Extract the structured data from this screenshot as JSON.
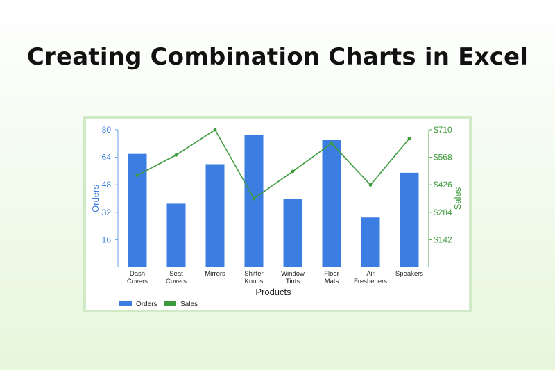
{
  "page": {
    "title": "Creating Combination Charts in Excel"
  },
  "chart_data": {
    "type": "bar",
    "combo": "bar + line (secondary axis)",
    "categories": [
      [
        "Dash",
        "Covers"
      ],
      [
        "Seat",
        "Covers"
      ],
      [
        "Mirrors"
      ],
      [
        "Shifter",
        "Knobs"
      ],
      [
        "Window",
        "Tints"
      ],
      [
        "Floor",
        "Mats"
      ],
      [
        "Air",
        "Fresheners"
      ],
      [
        "Speakers"
      ]
    ],
    "series": [
      {
        "name": "Orders",
        "type": "bar",
        "axis": "left",
        "color": "#3b7de0",
        "values": [
          66,
          37,
          60,
          77,
          40,
          74,
          29,
          55
        ]
      },
      {
        "name": "Sales",
        "type": "line",
        "axis": "right",
        "color": "#3c9a3c",
        "values": [
          475,
          580,
          710,
          355,
          495,
          640,
          425,
          665
        ]
      }
    ],
    "xlabel": "Products",
    "ylabel_left": "Orders",
    "ylabel_right": "Sales",
    "ylim_left": [
      0,
      80
    ],
    "yticks_left": [
      "16",
      "32",
      "48",
      "64",
      "80"
    ],
    "yticks_left_values": [
      16,
      32,
      48,
      64,
      80
    ],
    "ylim_right": [
      0,
      710
    ],
    "yticks_right": [
      "$142",
      "$284",
      "$426",
      "$568",
      "$710"
    ],
    "yticks_right_values": [
      142,
      284,
      426,
      568,
      710
    ],
    "grid": false,
    "legend_position": "bottom-left"
  }
}
